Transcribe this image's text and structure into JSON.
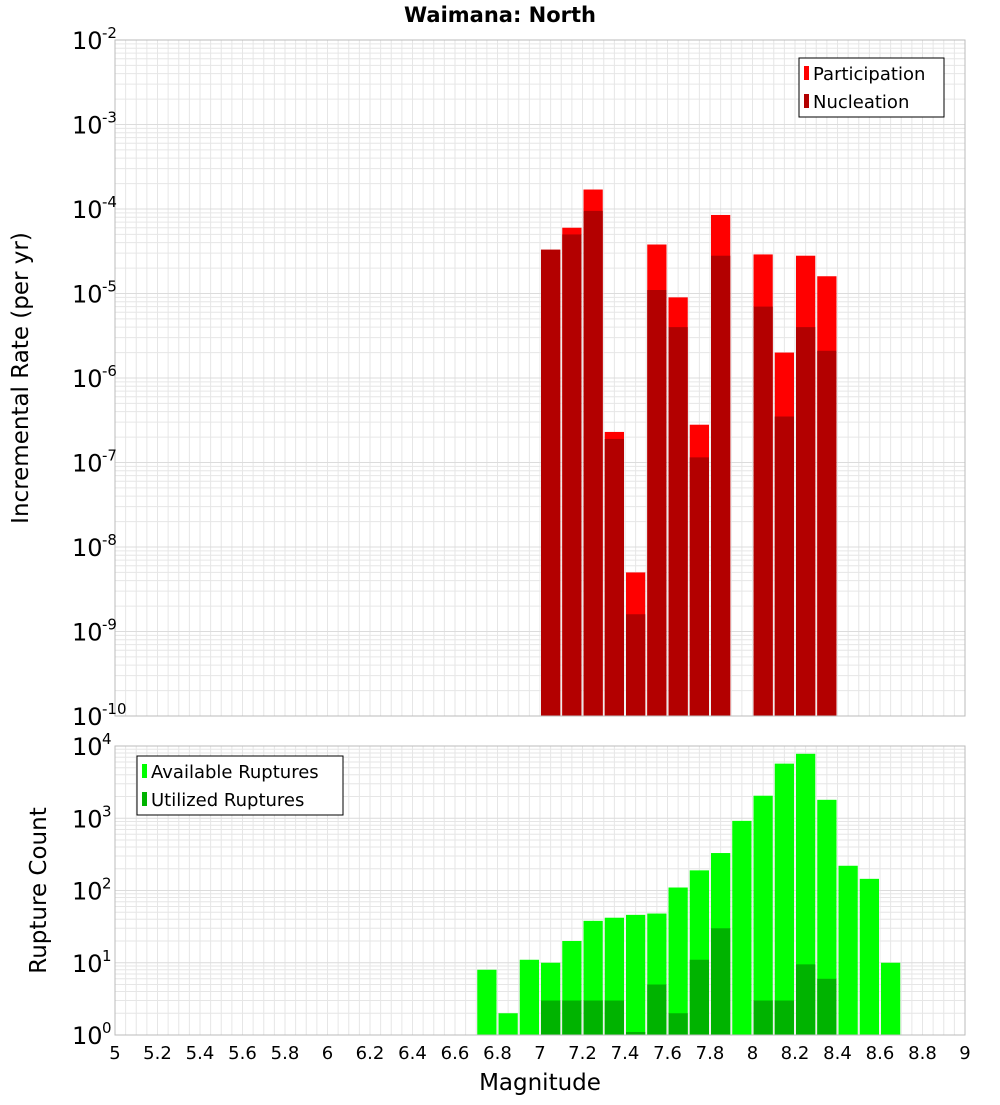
{
  "title": "Waimana: North",
  "x_axis_label": "Magnitude",
  "colors": {
    "participation": "#ff0000",
    "nucleation": "#b30000",
    "available": "#00ff00",
    "utilized": "#00b300",
    "grid": "#e6e6e6",
    "frame": "#bbbbbb"
  },
  "chart_data": [
    {
      "type": "bar",
      "ylabel": "Incremental Rate (per yr)",
      "yscale": "log",
      "ylim": [
        1e-10,
        0.01
      ],
      "xlim": [
        5,
        9
      ],
      "bar_width": 0.1,
      "legend": {
        "position": "top-right",
        "entries": [
          "Participation",
          "Nucleation"
        ]
      },
      "x": [
        7.05,
        7.15,
        7.25,
        7.35,
        7.45,
        7.55,
        7.65,
        7.75,
        7.85,
        8.05,
        8.15,
        8.25,
        8.35
      ],
      "series": [
        {
          "name": "Participation",
          "values": [
            3.3e-05,
            6e-05,
            0.00017,
            2.3e-07,
            5e-09,
            3.8e-05,
            9e-06,
            2.8e-07,
            8.5e-05,
            2.9e-05,
            2e-06,
            2.8e-05,
            1.6e-05
          ]
        },
        {
          "name": "Nucleation",
          "values": [
            3.3e-05,
            5e-05,
            9.5e-05,
            1.9e-07,
            1.6e-09,
            1.1e-05,
            4e-06,
            1.15e-07,
            2.8e-05,
            7e-06,
            3.5e-07,
            4e-06,
            2.1e-06
          ]
        }
      ]
    },
    {
      "type": "bar",
      "ylabel": "Rupture Count",
      "xlabel": "Magnitude",
      "yscale": "log",
      "ylim": [
        1,
        10000
      ],
      "xlim": [
        5,
        9
      ],
      "bar_width": 0.1,
      "legend": {
        "position": "top-left",
        "entries": [
          "Available Ruptures",
          "Utilized Ruptures"
        ]
      },
      "x": [
        6.75,
        6.85,
        6.95,
        7.05,
        7.15,
        7.25,
        7.35,
        7.45,
        7.55,
        7.65,
        7.75,
        7.85,
        7.95,
        8.05,
        8.15,
        8.25,
        8.35,
        8.45,
        8.55,
        8.65
      ],
      "series": [
        {
          "name": "Available Ruptures",
          "values": [
            8,
            2,
            11,
            10,
            20,
            38,
            42,
            46,
            48,
            110,
            190,
            330,
            920,
            2050,
            5700,
            7800,
            1800,
            220,
            145,
            10
          ]
        },
        {
          "name": "Utilized Ruptures",
          "values": [
            null,
            null,
            null,
            3,
            3,
            3,
            3,
            1.1,
            5,
            2,
            11,
            30,
            null,
            3,
            3,
            9.5,
            6,
            null,
            null,
            null
          ]
        }
      ]
    }
  ],
  "x_ticks": [
    "5",
    "5.2",
    "5.4",
    "5.6",
    "5.8",
    "6",
    "6.2",
    "6.4",
    "6.6",
    "6.8",
    "7",
    "7.2",
    "7.4",
    "7.6",
    "7.8",
    "8",
    "8.2",
    "8.4",
    "8.6",
    "8.8",
    "9"
  ],
  "top_y_ticks": [
    {
      "base": "10",
      "exp": "-2"
    },
    {
      "base": "10",
      "exp": "-3"
    },
    {
      "base": "10",
      "exp": "-4"
    },
    {
      "base": "10",
      "exp": "-5"
    },
    {
      "base": "10",
      "exp": "-6"
    },
    {
      "base": "10",
      "exp": "-7"
    },
    {
      "base": "10",
      "exp": "-8"
    },
    {
      "base": "10",
      "exp": "-9"
    },
    {
      "base": "10",
      "exp": "-10"
    }
  ],
  "bottom_y_ticks": [
    {
      "base": "10",
      "exp": "4"
    },
    {
      "base": "10",
      "exp": "3"
    },
    {
      "base": "10",
      "exp": "2"
    },
    {
      "base": "10",
      "exp": "1"
    },
    {
      "base": "10",
      "exp": "0"
    }
  ]
}
